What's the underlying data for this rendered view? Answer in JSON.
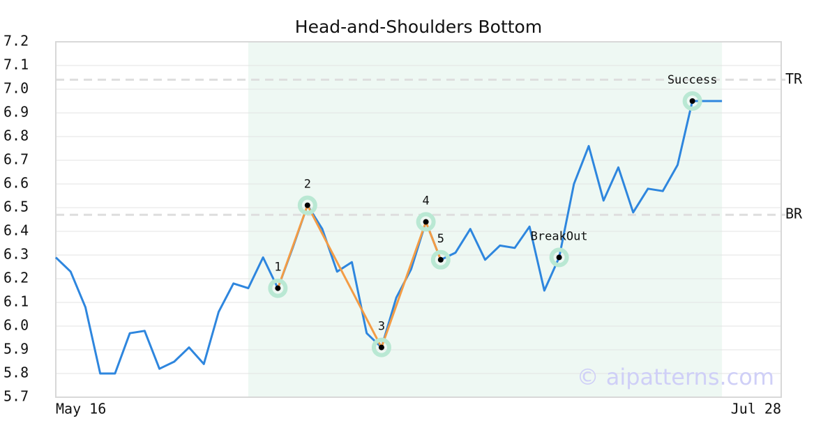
{
  "chart_data": {
    "type": "line",
    "title": "Head-and-Shoulders Bottom",
    "categories": [
      "May 16",
      null,
      null,
      null,
      null,
      null,
      null,
      null,
      null,
      null,
      null,
      null,
      null,
      null,
      null,
      null,
      null,
      null,
      null,
      null,
      null,
      null,
      null,
      null,
      null,
      null,
      null,
      null,
      null,
      null,
      null,
      null,
      null,
      null,
      null,
      null,
      null,
      null,
      null,
      null,
      null,
      null,
      null,
      null,
      null,
      null,
      null,
      null,
      null,
      "Jul 28"
    ],
    "series": [
      {
        "color": "#2e86de",
        "values": [
          6.29,
          6.23,
          6.08,
          5.8,
          5.8,
          5.97,
          5.98,
          5.82,
          5.85,
          5.91,
          5.84,
          6.06,
          6.18,
          6.16,
          6.29,
          6.16,
          6.33,
          6.51,
          6.41,
          6.23,
          6.27,
          5.97,
          5.91,
          6.12,
          6.24,
          6.44,
          6.28,
          6.31,
          6.41,
          6.28,
          6.34,
          6.33,
          6.42,
          6.15,
          6.29,
          6.6,
          6.76,
          6.53,
          6.67,
          6.48,
          6.58,
          6.57,
          6.68,
          6.95,
          6.95,
          6.95,
          null,
          null,
          null,
          null
        ]
      }
    ],
    "ylim": [
      5.7,
      7.2
    ],
    "yticks": [
      5.7,
      5.8,
      5.9,
      {
        "value": 6,
        "label": "6.0"
      },
      6.1,
      6.2,
      6.3,
      6.4,
      6.5,
      6.6,
      6.7,
      6.8,
      6.9,
      {
        "value": 7,
        "label": "7.0"
      },
      7.1,
      7.2
    ],
    "grid": true,
    "highlight": [
      13,
      45
    ],
    "highlight_color": "#eef8f3",
    "levels": [
      {
        "label": "TR",
        "value": 7.04
      },
      {
        "label": "BR",
        "value": 6.47
      }
    ],
    "pattern_color": "#f39c45",
    "marker_color": "#b9e8d3",
    "pattern_points": [
      {
        "label": "1",
        "index": 15,
        "value": 6.16,
        "connected": true
      },
      {
        "label": "2",
        "index": 17,
        "value": 6.51,
        "connected": true
      },
      {
        "label": "3",
        "index": 22,
        "value": 5.91,
        "connected": true
      },
      {
        "label": "4",
        "index": 25,
        "value": 6.44,
        "connected": true
      },
      {
        "label": "5",
        "index": 26,
        "value": 6.28,
        "connected": true
      },
      {
        "label": "BreakOut",
        "index": 34,
        "value": 6.29,
        "connected": false
      },
      {
        "label": "Success",
        "index": 43,
        "value": 6.95,
        "connected": false
      }
    ],
    "watermark": "© aipatterns.com"
  }
}
